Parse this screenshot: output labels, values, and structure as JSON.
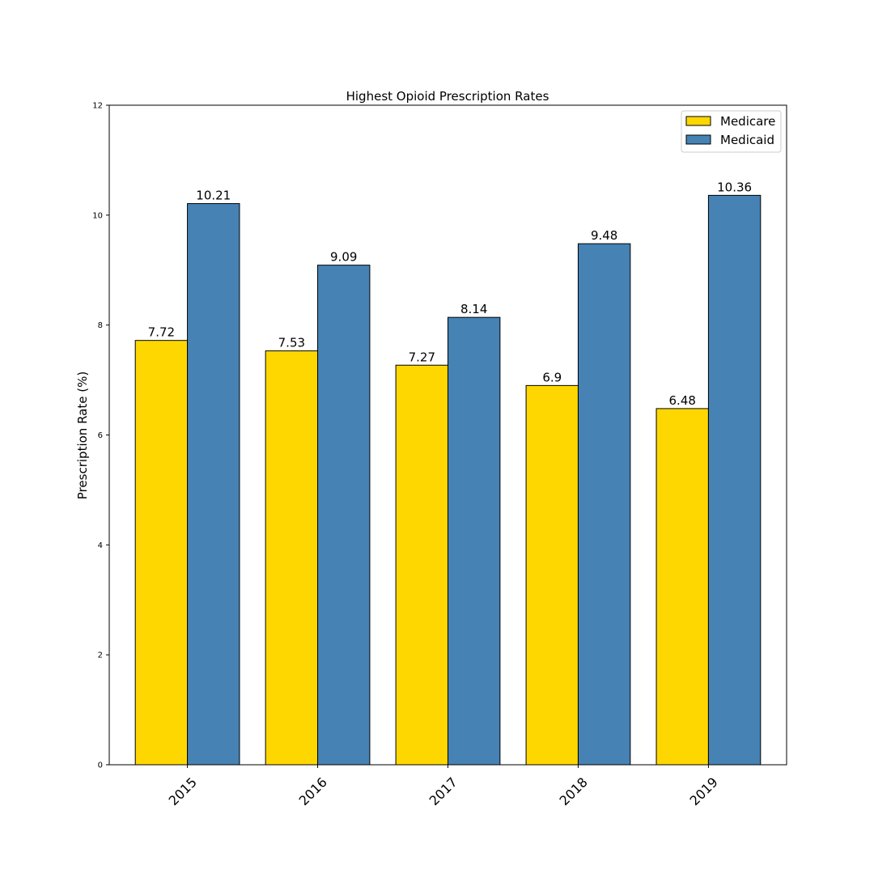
{
  "chart_data": {
    "type": "bar",
    "title": "Highest Opioid Prescription Rates",
    "xlabel": "",
    "ylabel": "Prescription Rate (%)",
    "categories": [
      "2015",
      "2016",
      "2017",
      "2018",
      "2019"
    ],
    "series": [
      {
        "name": "Medicare",
        "values": [
          7.72,
          7.53,
          7.27,
          6.9,
          6.48
        ],
        "labels": [
          "7.72",
          "7.53",
          "7.27",
          "6.9",
          "6.48"
        ],
        "color": "#FFD700"
      },
      {
        "name": "Medicaid",
        "values": [
          10.21,
          9.09,
          8.14,
          9.48,
          10.36
        ],
        "labels": [
          "10.21",
          "9.09",
          "8.14",
          "9.48",
          "10.36"
        ],
        "color": "#4682B4"
      }
    ],
    "ylim": [
      0,
      12
    ],
    "yticks": [
      "0",
      "2",
      "4",
      "6",
      "8",
      "10",
      "12"
    ],
    "grid": false,
    "legend_position": "top-right"
  }
}
